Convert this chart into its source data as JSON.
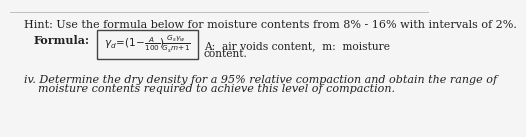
{
  "hint_text": "Hint: Use the formula below for moisture contents from 8% - 16% with intervals of 2%.",
  "formula_label": "Formula:",
  "annotation_line1": "A:  air voids content,  m:  moisture",
  "annotation_line2": "content.",
  "iv_text_line1": "iv. Determine the dry density for a 95% relative compaction and obtain the range of",
  "iv_text_line2": "    moisture contents required to achieve this level of compaction.",
  "bg_color": "#f5f5f5",
  "text_color": "#222222",
  "fontsize_main": 8.0,
  "fontsize_formula": 7.5
}
